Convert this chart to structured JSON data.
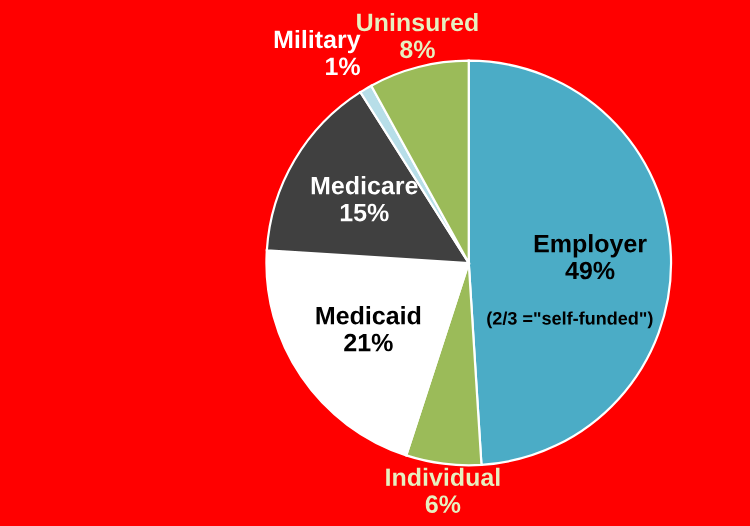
{
  "chart_data": {
    "type": "pie",
    "categories": [
      "Employer",
      "Individual",
      "Medicaid",
      "Medicare",
      "Military",
      "Uninsured"
    ],
    "values": [
      49,
      6,
      21,
      15,
      1,
      8
    ],
    "value_labels": [
      "49%",
      "6%",
      "21%",
      "15%",
      "1%",
      "8%"
    ],
    "colors": [
      "#4bacc6",
      "#9bbb59",
      "#ffffff",
      "#404040",
      "#b7dee8",
      "#9bbb59"
    ],
    "annotations": [
      "(2/3 =\"self-funded\")"
    ],
    "legend": false
  }
}
